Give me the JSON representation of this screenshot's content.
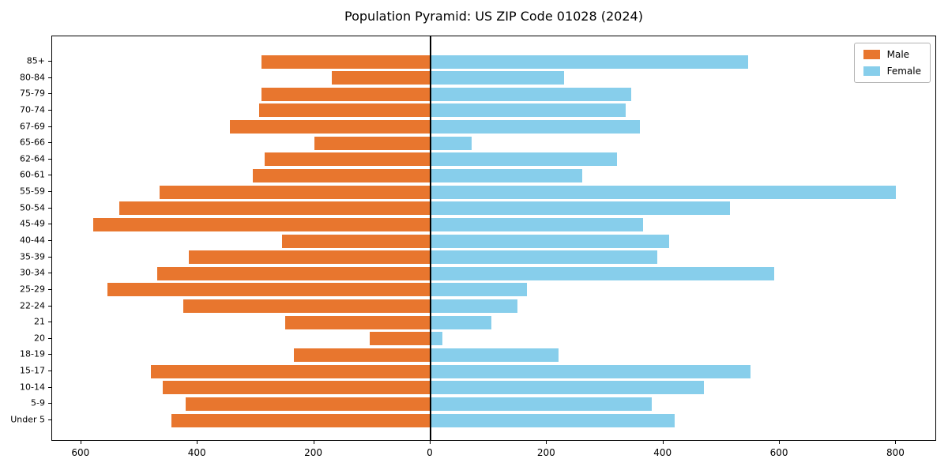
{
  "chart_data": {
    "type": "bar",
    "subtype": "population-pyramid",
    "title": "Population Pyramid: US ZIP Code 01028 (2024)",
    "categories": [
      "85+",
      "80-84",
      "75-79",
      "70-74",
      "67-69",
      "65-66",
      "62-64",
      "60-61",
      "55-59",
      "50-54",
      "45-49",
      "40-44",
      "35-39",
      "30-34",
      "25-29",
      "22-24",
      "21",
      "20",
      "18-19",
      "15-17",
      "10-14",
      "5-9",
      "Under 5"
    ],
    "series": [
      {
        "name": "Male",
        "color": "#e8762e",
        "values": [
          290,
          170,
          290,
          295,
          345,
          200,
          285,
          305,
          465,
          535,
          580,
          255,
          415,
          470,
          555,
          425,
          250,
          105,
          235,
          480,
          460,
          420,
          445
        ]
      },
      {
        "name": "Female",
        "color": "#87ceeb",
        "values": [
          545,
          230,
          345,
          335,
          360,
          70,
          320,
          260,
          800,
          515,
          365,
          410,
          390,
          590,
          165,
          150,
          105,
          20,
          220,
          550,
          470,
          380,
          420
        ]
      }
    ],
    "x_ticks": [
      {
        "value": -600,
        "label": "600"
      },
      {
        "value": -400,
        "label": "400"
      },
      {
        "value": -200,
        "label": "200"
      },
      {
        "value": 0,
        "label": "0"
      },
      {
        "value": 200,
        "label": "200"
      },
      {
        "value": 400,
        "label": "400"
      },
      {
        "value": 600,
        "label": "600"
      },
      {
        "value": 800,
        "label": "800"
      }
    ],
    "xlim": [
      -650,
      870
    ],
    "xlabel": "",
    "ylabel": "",
    "grid": false,
    "legend_position": "upper-right",
    "axis_color": "#000000",
    "background": "#ffffff"
  }
}
